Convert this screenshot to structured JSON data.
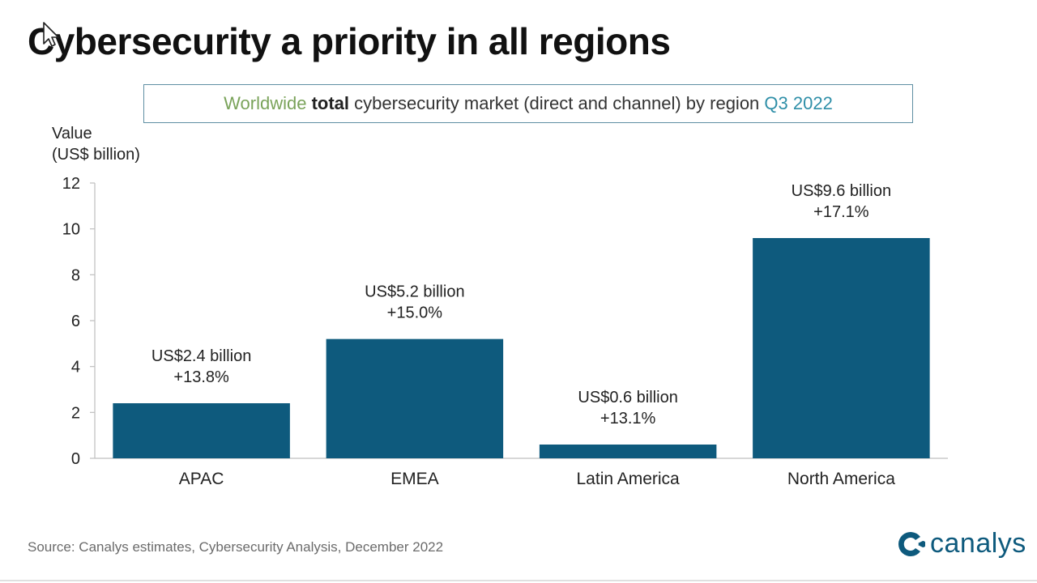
{
  "header": {
    "title": "Cybersecurity a priority in all regions"
  },
  "subtitle": {
    "part1": "Worldwide",
    "part2": "total",
    "part3": "cybersecurity market (direct and channel) by region",
    "part4": "Q3 2022"
  },
  "footer": {
    "source": "Source: Canalys estimates, Cybersecurity Analysis, December 2022",
    "logo_text": "canalys"
  },
  "colors": {
    "bar": "#0e5a7d",
    "axis": "#bfbfbf"
  },
  "chart_data": {
    "type": "bar",
    "title": "Worldwide total cybersecurity market (direct and channel) by region Q3 2022",
    "ylabel_line1": "Value",
    "ylabel_line2": "(US$ billion)",
    "ylim": [
      0,
      12
    ],
    "yticks": [
      0,
      2,
      4,
      6,
      8,
      10,
      12
    ],
    "grid": false,
    "categories": [
      "APAC",
      "EMEA",
      "Latin America",
      "North America"
    ],
    "values": [
      2.4,
      5.2,
      0.6,
      9.6
    ],
    "data_labels": [
      [
        "US$2.4 billion",
        "+13.8%"
      ],
      [
        "US$5.2 billion",
        "+15.0%"
      ],
      [
        "US$0.6 billion",
        "+13.1%"
      ],
      [
        "US$9.6 billion",
        "+17.1%"
      ]
    ]
  }
}
